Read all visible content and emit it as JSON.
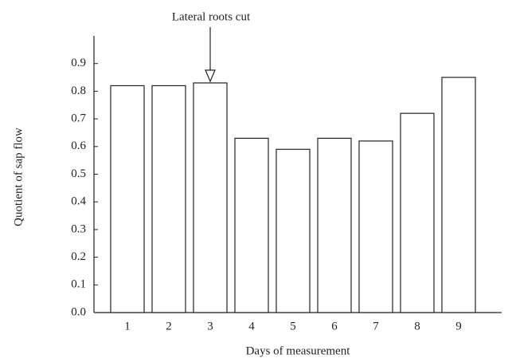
{
  "chart_data": {
    "type": "bar",
    "annotation": "Lateral roots cut",
    "x_label": "Days of measurement",
    "y_label": "Quotient of sap flow",
    "categories": [
      "1",
      "2",
      "3",
      "4",
      "5",
      "6",
      "7",
      "8",
      "9"
    ],
    "values": [
      0.82,
      0.82,
      0.83,
      0.63,
      0.59,
      0.63,
      0.62,
      0.72,
      0.85
    ],
    "color": "#ffffff",
    "ylim": [
      0,
      1.0
    ],
    "yticks": [
      {
        "value": 0,
        "label": "0.0"
      },
      0.1,
      0.2,
      0.3,
      0.4,
      0.5,
      0.6,
      0.7,
      0.8,
      0.9
    ]
  }
}
